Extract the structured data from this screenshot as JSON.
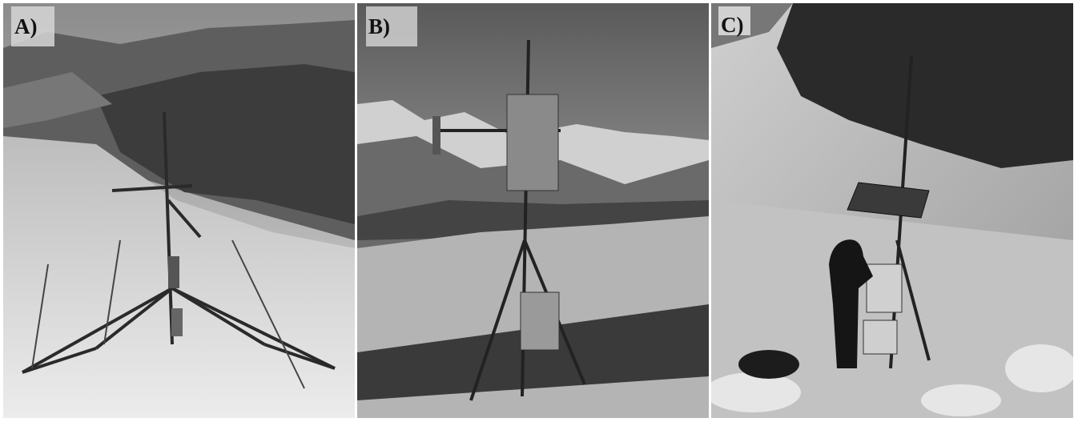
{
  "panels": [
    {
      "label": "A)"
    },
    {
      "label": "B)"
    },
    {
      "label": "C)"
    }
  ]
}
